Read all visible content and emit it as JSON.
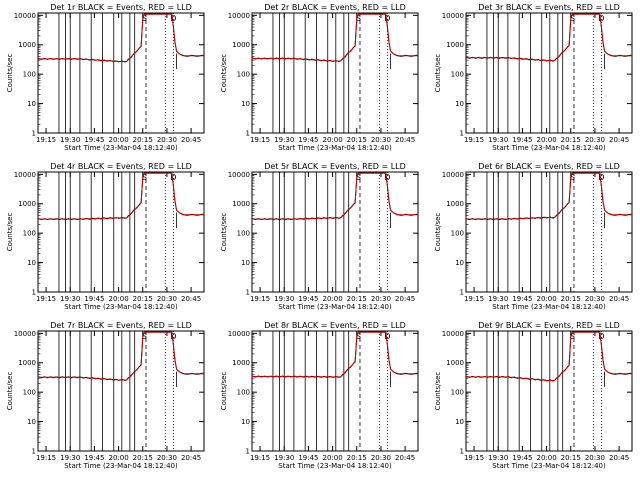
{
  "chart_data": {
    "type": "line",
    "layout": "3x3 grid",
    "xlabel": "Start Time (23-Mar-04 18:12:40)",
    "ylabel": "Counts/sec",
    "x_ticks": [
      "19:15",
      "19:30",
      "19:45",
      "20:00",
      "20:15",
      "20:30",
      "20:45"
    ],
    "x_tick_minutes": [
      1155,
      1170,
      1185,
      1200,
      1215,
      1230,
      1245
    ],
    "xlim": [
      "19:10",
      "20:53"
    ],
    "y_scale": "log",
    "ylim": [
      1,
      12000
    ],
    "y_ticks": [
      "1",
      "10",
      "100",
      "1000",
      "10000"
    ],
    "grid": false,
    "series_colors": {
      "events": "#000000",
      "lld": "#cc0000"
    },
    "markers": {
      "S_label": "S",
      "D_label": "D",
      "S_time": "20:16",
      "D_time": "20:34"
    },
    "panels": [
      {
        "title": "Det 1r BLACK = Events, RED = LLD",
        "base": 330,
        "dip": 270
      },
      {
        "title": "Det 2r BLACK = Events, RED = LLD",
        "base": 340,
        "dip": 280
      },
      {
        "title": "Det 3r BLACK = Events, RED = LLD",
        "base": 360,
        "dip": 290
      },
      {
        "title": "Det 4r BLACK = Events, RED = LLD",
        "base": 300,
        "dip": 330
      },
      {
        "title": "Det 5r BLACK = Events, RED = LLD",
        "base": 300,
        "dip": 330
      },
      {
        "title": "Det 6r BLACK = Events, RED = LLD",
        "base": 300,
        "dip": 340
      },
      {
        "title": "Det 7r BLACK = Events, RED = LLD",
        "base": 320,
        "dip": 260
      },
      {
        "title": "Det 8r BLACK = Events, RED = LLD",
        "base": 340,
        "dip": 330
      },
      {
        "title": "Det 9r BLACK = Events, RED = LLD",
        "base": 330,
        "dip": 250
      }
    ]
  }
}
